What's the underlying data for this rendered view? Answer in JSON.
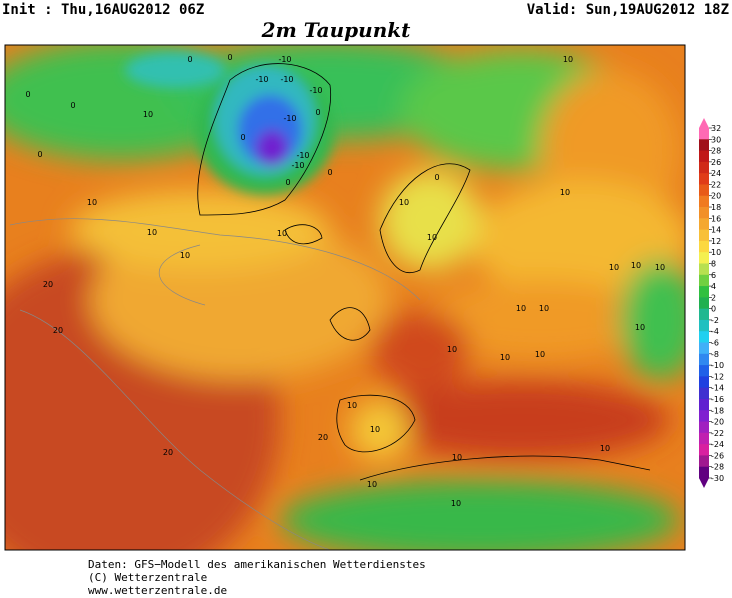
{
  "header": {
    "init": "Init : Thu,16AUG2012 06Z",
    "valid": "Valid: Sun,19AUG2012 18Z",
    "title": "2m Taupunkt"
  },
  "contour_labels": [
    "-10",
    "-10",
    "-10",
    "-10",
    "-10",
    "-10",
    "-10",
    "0",
    "0",
    "0",
    "0",
    "0",
    "0",
    "0",
    "0",
    "0",
    "0",
    "10",
    "10",
    "10",
    "10",
    "10",
    "10",
    "10",
    "10",
    "10",
    "10",
    "10",
    "10",
    "10",
    "10",
    "10",
    "10",
    "10",
    "10",
    "10",
    "10",
    "10",
    "10",
    "10",
    "10",
    "20",
    "20",
    "20",
    "20"
  ],
  "colorbar": {
    "ticks": [
      32,
      30,
      28,
      26,
      24,
      22,
      20,
      18,
      16,
      14,
      12,
      10,
      8,
      6,
      4,
      2,
      0,
      -2,
      -4,
      -6,
      -8,
      -10,
      -12,
      -14,
      -16,
      -18,
      -20,
      -22,
      -24,
      -26,
      -28,
      -30
    ],
    "colors": [
      "#ff69b4",
      "#a0101a",
      "#c01818",
      "#d02a18",
      "#e03c18",
      "#e85a18",
      "#f07a20",
      "#f29028",
      "#f5a830",
      "#f8c038",
      "#fcd840",
      "#f4f050",
      "#b8e050",
      "#70d040",
      "#30c040",
      "#20b050",
      "#20b890",
      "#20c0c0",
      "#20d0f0",
      "#40b0f8",
      "#3088f0",
      "#2060e8",
      "#2040e0",
      "#4030d0",
      "#6020d0",
      "#8020d0",
      "#a020c0",
      "#c020b0",
      "#d820a0",
      "#a01890",
      "#600080"
    ]
  },
  "footer": {
    "source": "Daten: GFS−Modell des amerikanischen Wetterdienstes",
    "copyright": "(C) Wetterzentrale",
    "url": "www.wetterzentrale.de"
  }
}
